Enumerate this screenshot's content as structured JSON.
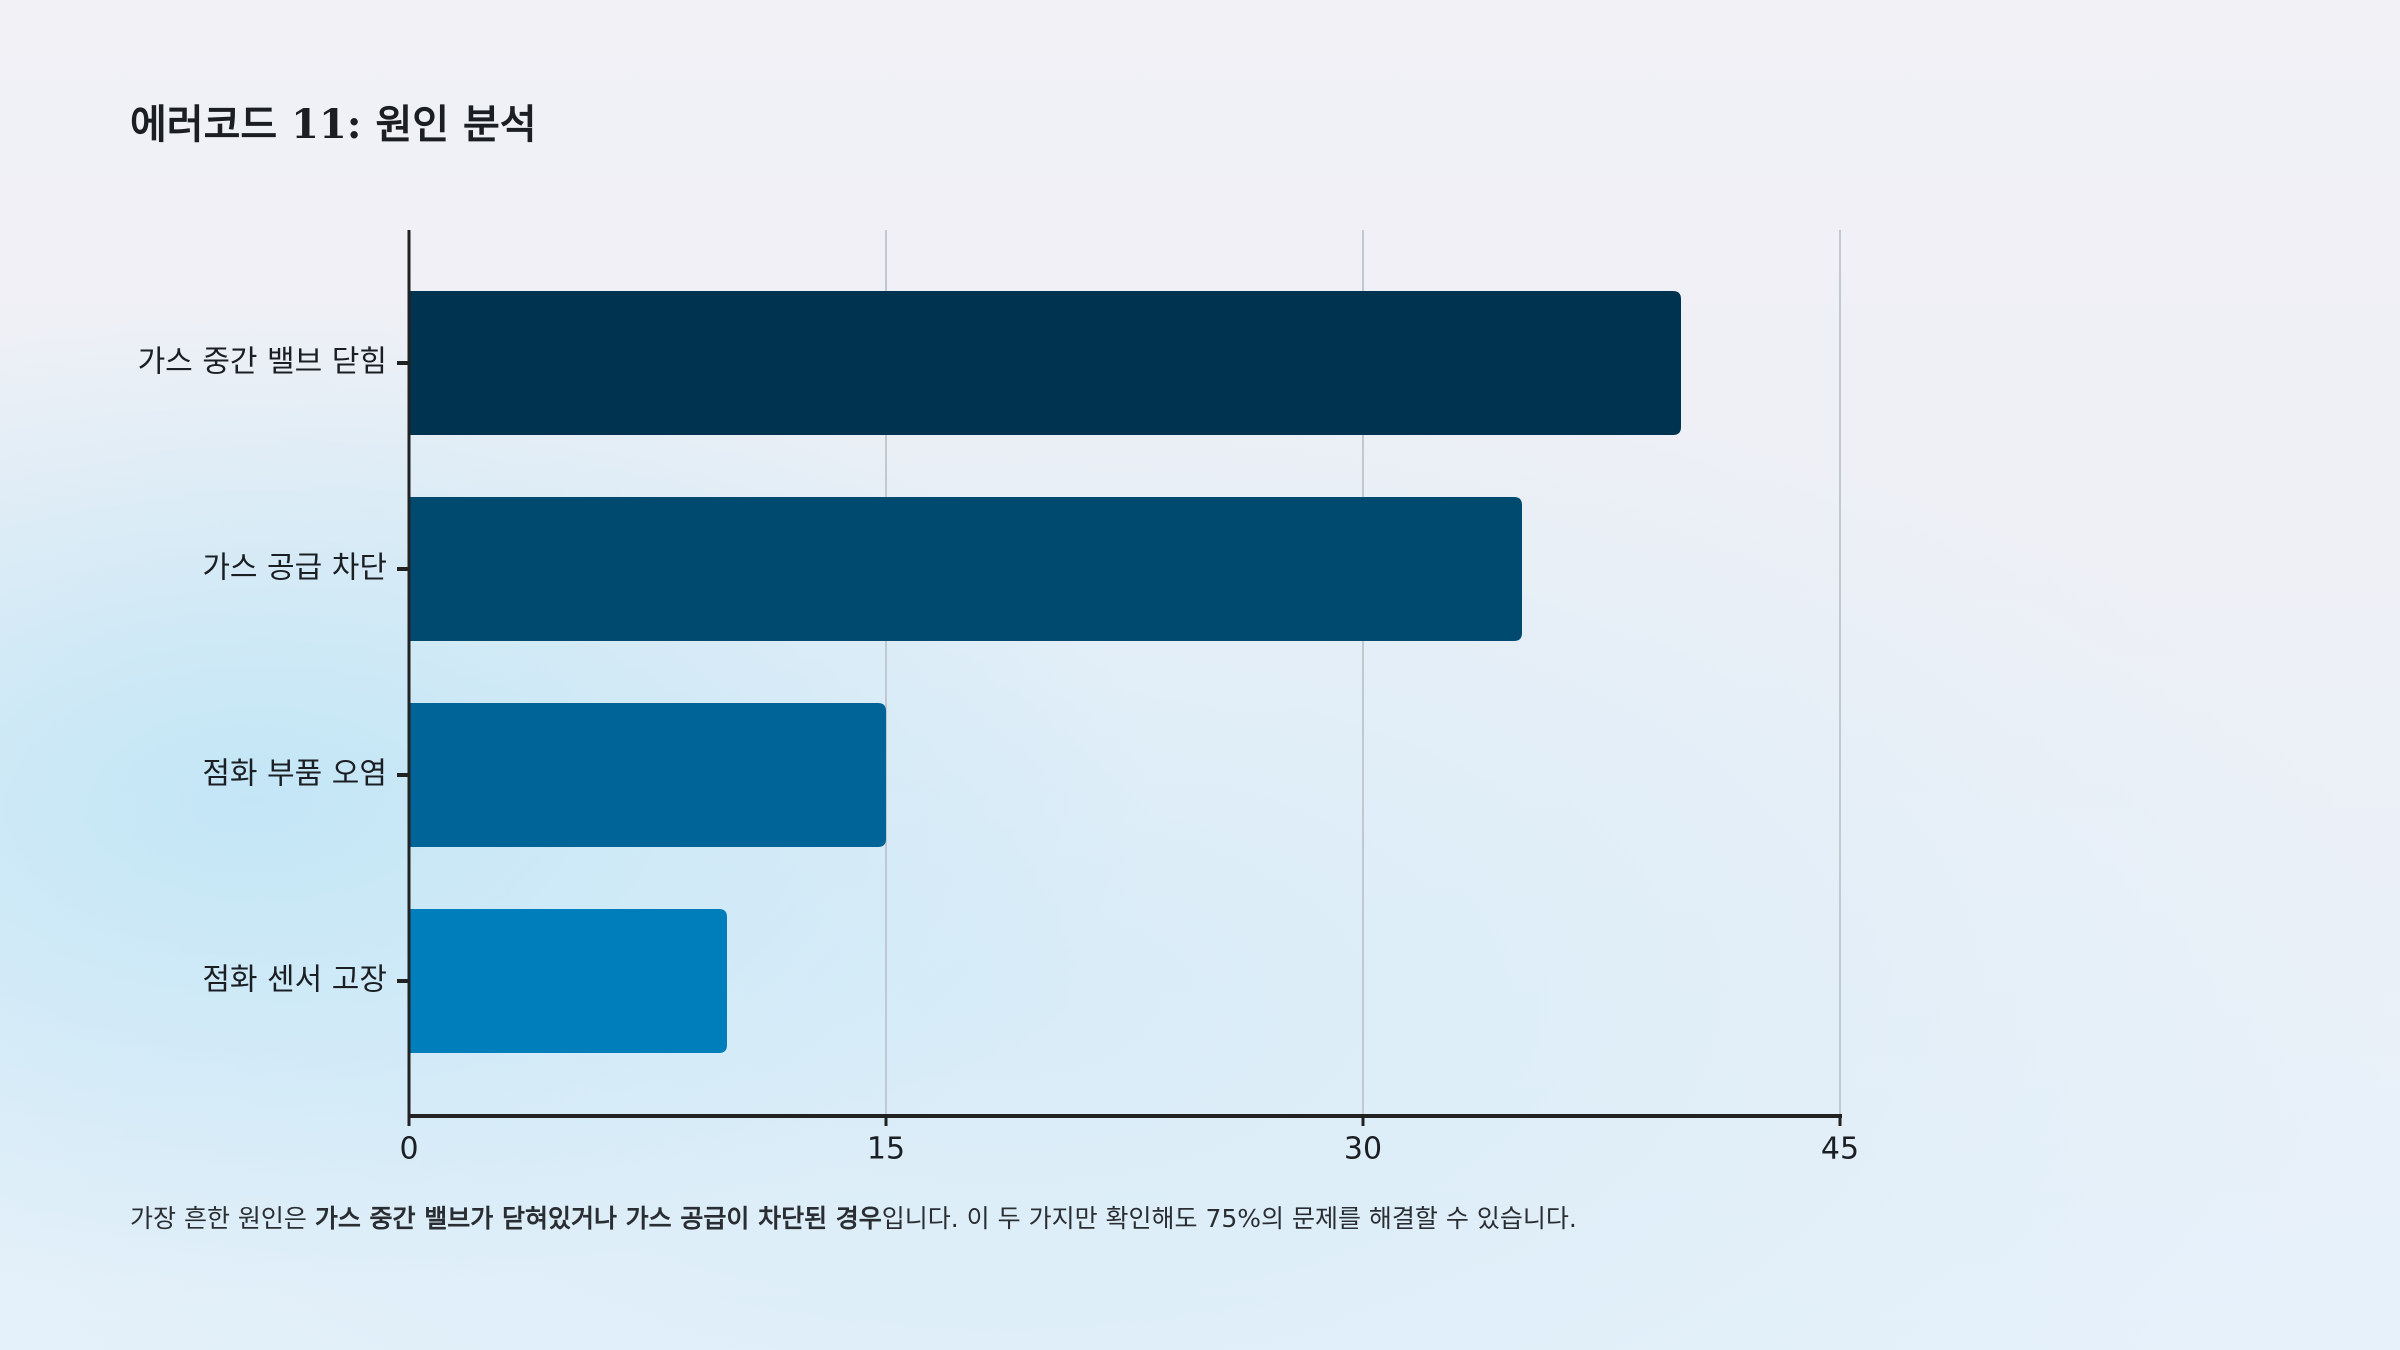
{
  "chart_data": {
    "type": "bar",
    "orientation": "horizontal",
    "title": "에러코드 11: 원인 분석",
    "categories": [
      "가스 중간 밸브 닫힘",
      "가스 공급 차단",
      "점화 부품 오염",
      "점화 센서 고장"
    ],
    "values": [
      40,
      35,
      15,
      10
    ],
    "colors": [
      "#003350",
      "#00496f",
      "#006499",
      "#007dbb"
    ],
    "xlim": [
      0,
      45
    ],
    "xticks": [
      0,
      15,
      30,
      45
    ],
    "grid": true,
    "caption": [
      "가장 흔한 원인은 ",
      "가스 중간 밸브가 닫혀있거나 가스 공급이 차단된 경우",
      "입니다. 이 두 가지만 확인해도 75%의 문제를 해결할 수 있습니다."
    ]
  }
}
